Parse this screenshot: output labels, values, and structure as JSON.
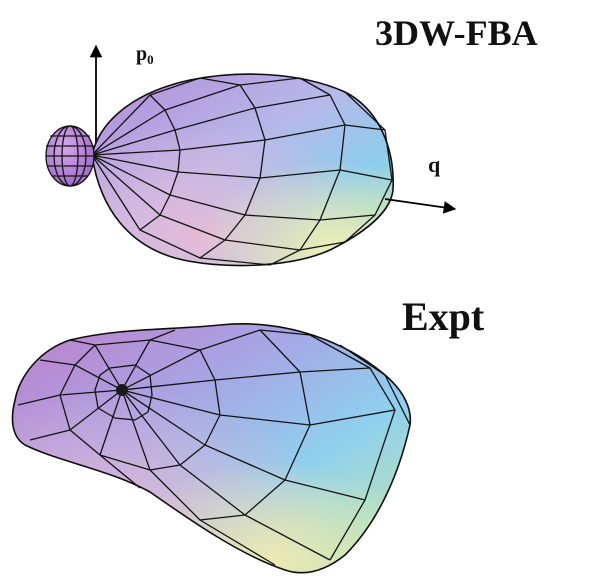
{
  "labels": {
    "theory_title": "3DW-FBA",
    "experiment_title": "Expt",
    "axis_p0_base": "p",
    "axis_p0_sub": "0",
    "axis_q": "q"
  },
  "colors": {
    "pink": "#e3a6cf",
    "purple": "#b58ad6",
    "blue": "#8dcdec",
    "cyan": "#9fe6ea",
    "yellow": "#e4ecae",
    "green": "#b9e6b1",
    "mesh": "#141414"
  }
}
